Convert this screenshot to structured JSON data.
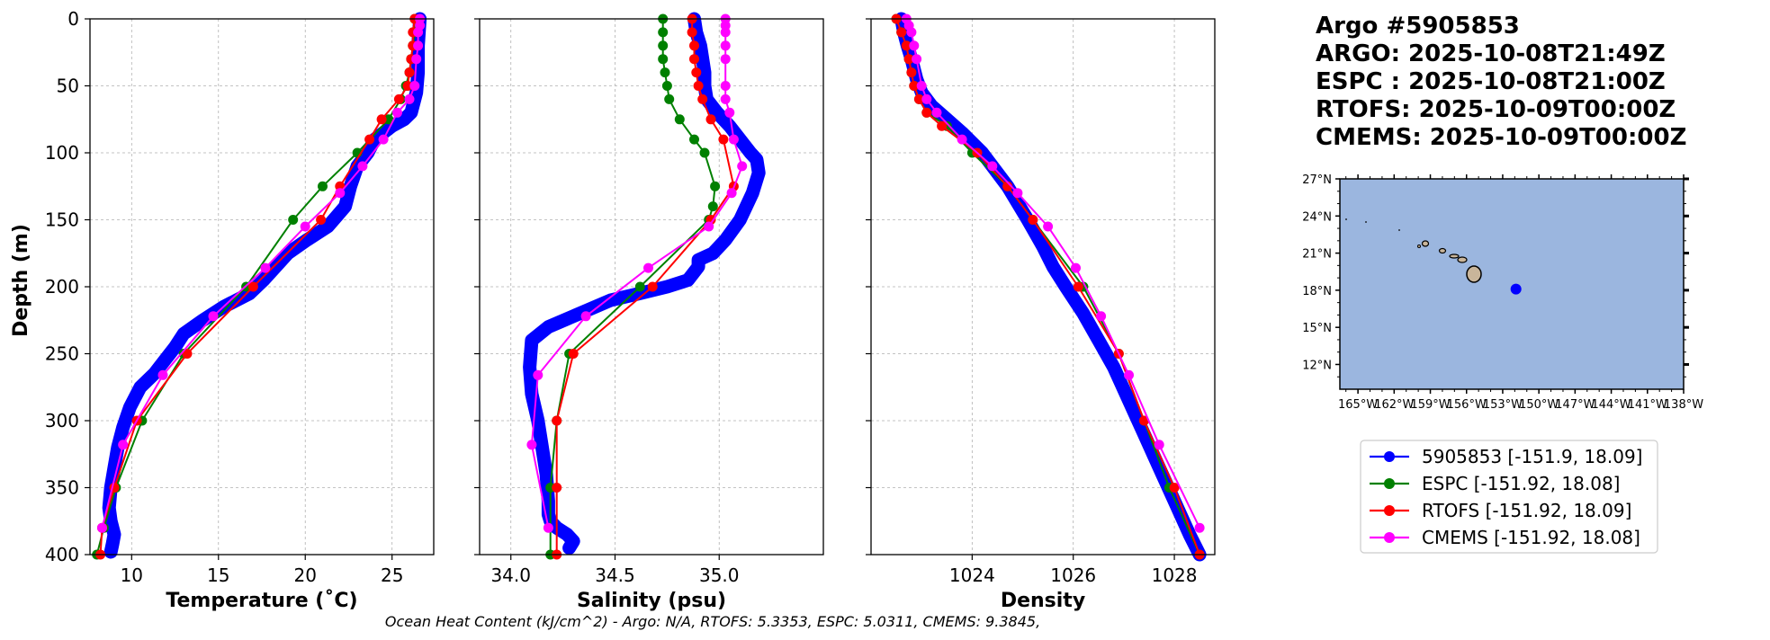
{
  "colors": {
    "argo": "#0000ff",
    "espc": "#008000",
    "rtofs": "#ff0000",
    "cmems": "#ff00ff",
    "ocean": "#9bb6df",
    "land": "#c9b59a",
    "grid": "#b0b0b0"
  },
  "figure_title": [
    "Argo #5905853",
    "ARGO: 2025-10-08T21:49Z",
    "ESPC : 2025-10-08T21:00Z",
    "RTOFS: 2025-10-09T00:00Z",
    "CMEMS: 2025-10-09T00:00Z"
  ],
  "footer": "Ocean Heat Content (kJ/cm^2) - Argo: N/A,  RTOFS: 5.3353,  ESPC: 5.0311,  CMEMS: 9.3845,",
  "legend": [
    {
      "key": "argo",
      "label": "5905853 [-151.9, 18.09]"
    },
    {
      "key": "espc",
      "label": "ESPC [-151.92, 18.08]"
    },
    {
      "key": "rtofs",
      "label": "RTOFS [-151.92, 18.09]"
    },
    {
      "key": "cmems",
      "label": "CMEMS [-151.92, 18.08]"
    }
  ],
  "map": {
    "lon_range": [
      -166.5,
      -138
    ],
    "lat_range": [
      10,
      27
    ],
    "lon_ticks": [
      -165,
      -162,
      -159,
      -156,
      -153,
      -150,
      -147,
      -144,
      -141,
      -138
    ],
    "lon_tick_labels": [
      "165°W",
      "162°W",
      "159°W",
      "156°W",
      "153°W",
      "150°W",
      "147°W",
      "144°W",
      "141°W",
      "138°W"
    ],
    "lat_ticks": [
      27,
      24,
      21,
      18,
      15,
      12
    ],
    "lat_tick_labels": [
      "27°N",
      "24°N",
      "21°N",
      "18°N",
      "15°N",
      "12°N"
    ],
    "marker": {
      "lon": -151.9,
      "lat": 18.09
    }
  },
  "chart_data": [
    {
      "type": "line",
      "name": "temperature",
      "xlabel": "Temperature (˚C)",
      "ylabel": "Depth (m)",
      "xlim": [
        7.6,
        27.4
      ],
      "ylim": [
        400,
        0
      ],
      "xticks": [
        10,
        15,
        20,
        25
      ],
      "yticks": [
        0,
        50,
        100,
        150,
        200,
        250,
        300,
        350,
        400
      ],
      "series": [
        {
          "name": "5905853",
          "key": "argo",
          "dense": true,
          "x": [
            26.6,
            26.5,
            26.5,
            26.4,
            26.3,
            26.2,
            26.1,
            25.7,
            25.0,
            24.5,
            24.0,
            23.6,
            23.0,
            22.6,
            22.3,
            21.3,
            20.1,
            19.0,
            18.3,
            17.6,
            16.8,
            15.3,
            14.1,
            13.0,
            12.5,
            11.9,
            11.3,
            10.5,
            9.9,
            9.5,
            9.2,
            9.0,
            8.8,
            8.7,
            8.8,
            9.0,
            8.9,
            8.8
          ],
          "y": [
            0,
            20,
            40,
            55,
            60,
            65,
            70,
            75,
            80,
            85,
            90,
            100,
            110,
            125,
            140,
            155,
            165,
            175,
            185,
            195,
            205,
            215,
            225,
            235,
            245,
            255,
            265,
            275,
            290,
            305,
            320,
            335,
            350,
            365,
            375,
            385,
            392,
            398
          ]
        },
        {
          "name": "ESPC",
          "key": "espc",
          "dense": false,
          "x": [
            26.3,
            26.3,
            26.2,
            26.1,
            26.0,
            25.8,
            25.5,
            24.8,
            23.0,
            21.0,
            19.3,
            16.6,
            13.0,
            10.6,
            9.1,
            8.4,
            8.0
          ],
          "y": [
            0,
            10,
            20,
            30,
            40,
            50,
            60,
            75,
            100,
            125,
            150,
            200,
            250,
            300,
            350,
            380,
            400
          ]
        },
        {
          "name": "RTOFS",
          "key": "rtofs",
          "dense": false,
          "x": [
            26.3,
            26.2,
            26.2,
            26.1,
            26.0,
            25.9,
            25.4,
            24.4,
            23.7,
            22.0,
            20.9,
            17.0,
            13.2,
            10.3,
            9.0,
            8.3,
            8.2
          ],
          "y": [
            0,
            10,
            20,
            30,
            40,
            50,
            60,
            75,
            90,
            125,
            150,
            200,
            250,
            300,
            350,
            380,
            400
          ]
        },
        {
          "name": "CMEMS",
          "key": "cmems",
          "dense": false,
          "x": [
            26.6,
            26.6,
            26.5,
            26.5,
            26.4,
            26.3,
            26.0,
            25.3,
            24.5,
            23.3,
            22.0,
            20.0,
            17.7,
            14.7,
            11.8,
            9.5,
            8.3
          ],
          "y": [
            0,
            5,
            10,
            20,
            30,
            50,
            60,
            70,
            90,
            110,
            130,
            155,
            186,
            222,
            266,
            318,
            380
          ]
        }
      ]
    },
    {
      "type": "line",
      "name": "salinity",
      "xlabel": "Salinity (psu)",
      "ylabel": "",
      "xlim": [
        33.85,
        35.5
      ],
      "ylim": [
        400,
        0
      ],
      "xticks": [
        34.0,
        34.5,
        35.0
      ],
      "xtick_labels": [
        "34.0",
        "34.5",
        "35.0"
      ],
      "yticks": [
        0,
        50,
        100,
        150,
        200,
        250,
        300,
        350,
        400
      ],
      "series": [
        {
          "name": "5905853",
          "key": "argo",
          "dense": true,
          "x": [
            34.88,
            34.89,
            34.91,
            34.92,
            34.93,
            34.93,
            34.94,
            34.99,
            35.05,
            35.1,
            35.15,
            35.18,
            35.19,
            35.16,
            35.1,
            35.03,
            34.97,
            34.9,
            34.9,
            34.85,
            34.75,
            34.62,
            34.48,
            34.33,
            34.18,
            34.1,
            34.09,
            34.1,
            34.13,
            34.15,
            34.17,
            34.18,
            34.18,
            34.19,
            34.22,
            34.27,
            34.3,
            34.28
          ],
          "y": [
            0,
            10,
            20,
            30,
            40,
            50,
            60,
            70,
            80,
            90,
            100,
            105,
            115,
            130,
            150,
            165,
            175,
            180,
            185,
            195,
            200,
            205,
            210,
            220,
            230,
            240,
            260,
            280,
            300,
            320,
            340,
            360,
            370,
            375,
            380,
            385,
            390,
            395
          ]
        },
        {
          "name": "ESPC",
          "key": "espc",
          "dense": false,
          "x": [
            34.73,
            34.73,
            34.73,
            34.73,
            34.74,
            34.75,
            34.76,
            34.81,
            34.88,
            34.93,
            34.98,
            34.97,
            34.95,
            34.62,
            34.28,
            34.22,
            34.19,
            34.19
          ],
          "y": [
            0,
            10,
            20,
            30,
            40,
            50,
            60,
            75,
            90,
            100,
            125,
            140,
            150,
            200,
            250,
            300,
            350,
            400
          ]
        },
        {
          "name": "RTOFS",
          "key": "rtofs",
          "dense": false,
          "x": [
            34.87,
            34.87,
            34.88,
            34.88,
            34.89,
            34.9,
            34.92,
            34.96,
            35.02,
            35.07,
            34.96,
            34.68,
            34.3,
            34.22,
            34.22,
            34.22
          ],
          "y": [
            0,
            10,
            20,
            30,
            40,
            50,
            60,
            75,
            90,
            125,
            150,
            200,
            250,
            300,
            350,
            400
          ]
        },
        {
          "name": "CMEMS",
          "key": "cmems",
          "dense": false,
          "x": [
            35.03,
            35.03,
            35.03,
            35.03,
            35.03,
            35.03,
            35.03,
            35.05,
            35.07,
            35.11,
            35.06,
            34.95,
            34.66,
            34.36,
            34.13,
            34.1,
            34.18
          ],
          "y": [
            0,
            5,
            10,
            20,
            30,
            50,
            60,
            70,
            90,
            110,
            130,
            155,
            186,
            222,
            266,
            318,
            380
          ]
        }
      ]
    },
    {
      "type": "line",
      "name": "density",
      "xlabel": "Density",
      "ylabel": "",
      "xlim": [
        1022.0,
        1028.8
      ],
      "ylim": [
        400,
        0
      ],
      "xticks": [
        1024,
        1026,
        1028
      ],
      "yticks": [
        0,
        50,
        100,
        150,
        200,
        250,
        300,
        350,
        400
      ],
      "series": [
        {
          "name": "5905853",
          "key": "argo",
          "dense": true,
          "x": [
            1022.6,
            1022.65,
            1022.72,
            1022.8,
            1022.9,
            1023.0,
            1023.2,
            1023.5,
            1023.8,
            1024.2,
            1024.7,
            1025.1,
            1025.4,
            1025.6,
            1025.85,
            1026.2,
            1026.5,
            1026.8,
            1027.1,
            1027.4,
            1027.7,
            1028.0,
            1028.3,
            1028.5
          ],
          "y": [
            0,
            10,
            20,
            30,
            45,
            55,
            65,
            75,
            85,
            100,
            125,
            150,
            170,
            185,
            200,
            220,
            240,
            260,
            285,
            310,
            335,
            360,
            385,
            400
          ]
        },
        {
          "name": "ESPC",
          "key": "espc",
          "dense": false,
          "x": [
            1022.5,
            1022.6,
            1022.7,
            1022.75,
            1022.8,
            1022.85,
            1022.95,
            1023.1,
            1023.5,
            1024.0,
            1024.7,
            1025.2,
            1026.2,
            1026.9,
            1027.4,
            1027.9,
            1028.5
          ],
          "y": [
            0,
            10,
            20,
            30,
            40,
            50,
            60,
            70,
            80,
            100,
            125,
            150,
            200,
            250,
            300,
            350,
            400
          ]
        },
        {
          "name": "RTOFS",
          "key": "rtofs",
          "dense": false,
          "x": [
            1022.5,
            1022.6,
            1022.7,
            1022.75,
            1022.8,
            1022.85,
            1022.95,
            1023.1,
            1023.4,
            1024.1,
            1024.7,
            1025.2,
            1026.1,
            1026.9,
            1027.4,
            1028.0,
            1028.5
          ],
          "y": [
            0,
            10,
            20,
            30,
            40,
            50,
            60,
            70,
            80,
            100,
            125,
            150,
            200,
            250,
            300,
            350,
            400
          ]
        },
        {
          "name": "CMEMS",
          "key": "cmems",
          "dense": false,
          "x": [
            1022.7,
            1022.75,
            1022.8,
            1022.85,
            1022.9,
            1023.0,
            1023.1,
            1023.3,
            1023.8,
            1024.4,
            1024.9,
            1025.5,
            1026.05,
            1026.55,
            1027.1,
            1027.7,
            1028.5
          ],
          "y": [
            0,
            5,
            10,
            20,
            30,
            50,
            60,
            70,
            90,
            110,
            130,
            155,
            186,
            222,
            266,
            318,
            380
          ]
        }
      ]
    }
  ]
}
